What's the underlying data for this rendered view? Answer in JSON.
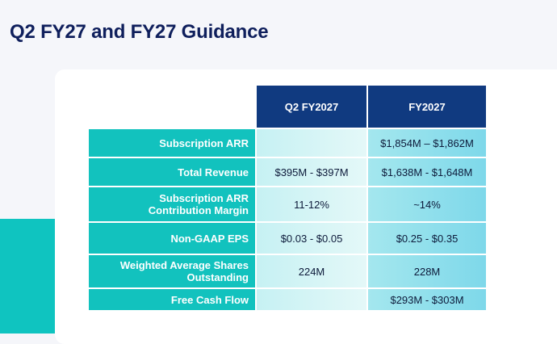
{
  "title": "Q2 FY27 and FY27 Guidance",
  "table": {
    "columns": [
      "Q2 FY2027",
      "FY2027"
    ],
    "rows": [
      {
        "label_lines": [
          "Subscription ARR"
        ],
        "q2": "",
        "fy": "$1,854M – $1,862M"
      },
      {
        "label_lines": [
          "Total Revenue"
        ],
        "q2": "$395M - $397M",
        "fy": "$1,638M - $1,648M"
      },
      {
        "label_lines": [
          "Subscription ARR",
          "Contribution Margin"
        ],
        "q2": "11-12%",
        "fy": "~14%"
      },
      {
        "label_lines": [
          "Non-GAAP EPS"
        ],
        "q2": "$0.03 - $0.05",
        "fy": "$0.25 - $0.35"
      },
      {
        "label_lines": [
          "Weighted Average Shares",
          "Outstanding"
        ],
        "q2": "224M",
        "fy": "228M"
      },
      {
        "label_lines": [
          "Free Cash Flow"
        ],
        "q2": "",
        "fy": "$293M - $303M"
      }
    ]
  },
  "colors": {
    "title": "#0f1f5c",
    "header_bg": "#103a80",
    "row_label_bg": "#12c2be",
    "accent": "#0fc4c0"
  }
}
